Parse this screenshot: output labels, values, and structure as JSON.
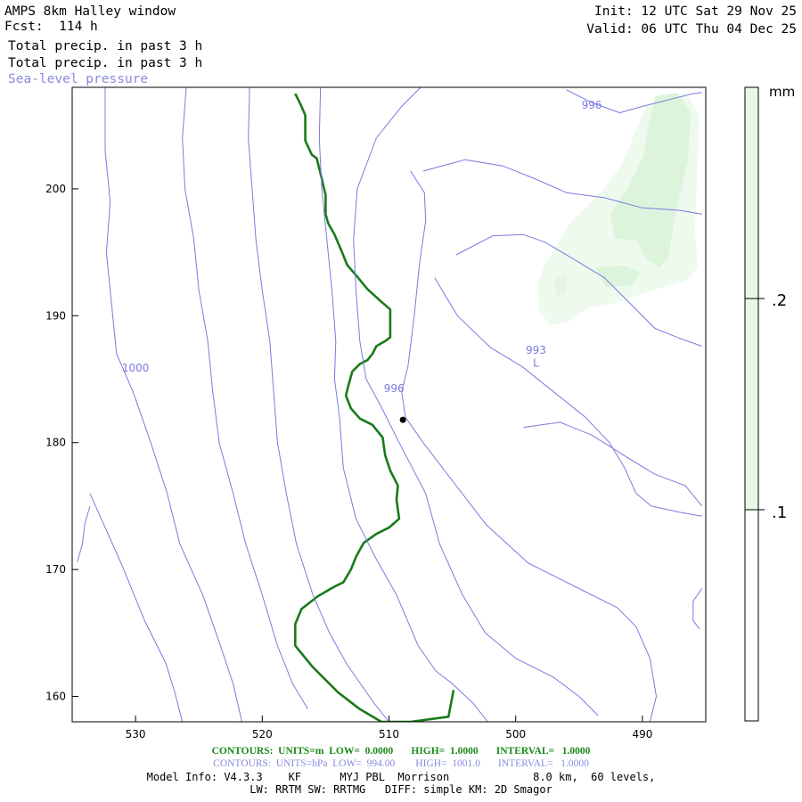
{
  "header": {
    "model": "AMPS 8km Halley window",
    "fcst": "Fcst:  114 h",
    "init": "Init: 12 UTC Sat 29 Nov 25",
    "valid": "Valid: 06 UTC Thu 04 Dec 25",
    "field1": "Total precip. in past 3 h",
    "field2": "Total precip. in past 3 h",
    "field3": "Sea-level pressure"
  },
  "footer": {
    "green_line": "CONTOURS:  UNITS=m  LOW=  0.0000       HIGH=  1.0000       INTERVAL=   1.0000",
    "blue_line": "CONTOURS:  UNITS=hPa  LOW=  994.00        HIGH=  1001.0       INTERVAL=   1.0000",
    "model_info": "Model Info: V4.3.3    KF      MYJ PBL  Morrison             8.0 km,  60 levels,",
    "physics": "LW: RRTM SW: RRTMG   DIFF: simple KM: 2D Smagor"
  },
  "colorbar": {
    "unit": "mm",
    "labels": [
      ".2",
      ".1"
    ],
    "levels": [
      0.1,
      0.2
    ],
    "colors": [
      "#ffffff",
      "#e8f8e8"
    ]
  },
  "chart_data": {
    "type": "line",
    "title": "",
    "xlabel": "",
    "ylabel": "",
    "xlim": [
      535,
      485
    ],
    "ylim": [
      208,
      158
    ],
    "x_ticks": [
      530,
      520,
      510,
      500,
      490
    ],
    "y_ticks": [
      160,
      170,
      180,
      190,
      200
    ],
    "grid": false,
    "contour_labels": [
      {
        "text": "1000",
        "x": 530.0,
        "y": 185.6
      },
      {
        "text": "996",
        "x": 509.6,
        "y": 184.0
      },
      {
        "text": "L",
        "x": 498.4,
        "y": 186.0
      },
      {
        "text": "993",
        "x": 498.4,
        "y": 187.0
      },
      {
        "text": "996",
        "x": 494.0,
        "y": 206.3
      }
    ],
    "point_marker": {
      "x": 508.9,
      "y": 181.8
    },
    "series": [
      {
        "color": "#1a7a1a",
        "points": [
          [
            504.9,
            160.5
          ],
          [
            505.3,
            158.4
          ],
          [
            508.3,
            158.0
          ],
          [
            510.6,
            158.0
          ],
          [
            512.3,
            159.0
          ],
          [
            514.0,
            160.3
          ],
          [
            516.0,
            162.3
          ],
          [
            517.4,
            164.0
          ],
          [
            517.4,
            165.7
          ],
          [
            516.9,
            166.9
          ],
          [
            515.6,
            167.9
          ],
          [
            514.4,
            168.6
          ],
          [
            513.6,
            169.0
          ],
          [
            513.0,
            170.0
          ],
          [
            512.6,
            171.0
          ],
          [
            512.0,
            172.1
          ],
          [
            511.0,
            172.8
          ],
          [
            510.0,
            173.3
          ],
          [
            509.2,
            174.0
          ],
          [
            509.4,
            175.5
          ],
          [
            509.3,
            176.6
          ],
          [
            509.9,
            177.8
          ],
          [
            510.3,
            179.0
          ],
          [
            510.5,
            180.4
          ],
          [
            511.3,
            181.4
          ],
          [
            512.3,
            181.9
          ],
          [
            513.0,
            182.7
          ],
          [
            513.4,
            183.7
          ],
          [
            513.2,
            184.5
          ],
          [
            512.9,
            185.6
          ],
          [
            512.3,
            186.2
          ],
          [
            511.7,
            186.5
          ],
          [
            511.3,
            187.0
          ],
          [
            511.0,
            187.6
          ],
          [
            510.3,
            188.0
          ],
          [
            509.9,
            188.3
          ],
          [
            509.9,
            189.7
          ],
          [
            509.9,
            190.5
          ],
          [
            510.6,
            191.1
          ],
          [
            511.7,
            192.1
          ],
          [
            512.6,
            193.2
          ],
          [
            513.3,
            194.0
          ],
          [
            513.7,
            195.0
          ],
          [
            514.3,
            196.4
          ],
          [
            514.8,
            197.3
          ],
          [
            515.0,
            198.0
          ],
          [
            515.0,
            199.5
          ],
          [
            515.4,
            201.2
          ],
          [
            515.7,
            202.4
          ],
          [
            516.1,
            202.7
          ],
          [
            516.6,
            203.8
          ],
          [
            516.6,
            205.8
          ],
          [
            517.0,
            206.7
          ],
          [
            517.4,
            207.5
          ]
        ]
      },
      {
        "color": "#7a7ae0",
        "points": [
          [
            533.6,
            176.0
          ],
          [
            531.1,
            170.4
          ],
          [
            529.3,
            166.0
          ],
          [
            527.6,
            162.6
          ],
          [
            526.9,
            160.3
          ],
          [
            526.3,
            158.0
          ]
        ]
      },
      {
        "color": "#7a7ae0",
        "points": [
          [
            532.4,
            208.0
          ],
          [
            532.4,
            203.0
          ],
          [
            532.0,
            199.0
          ],
          [
            532.3,
            195.0
          ],
          [
            531.9,
            191.0
          ],
          [
            531.5,
            187.0
          ],
          [
            530.2,
            184.0
          ],
          [
            528.8,
            180.0
          ],
          [
            527.5,
            176.0
          ],
          [
            526.5,
            172.0
          ],
          [
            524.7,
            168.0
          ],
          [
            523.3,
            164.0
          ],
          [
            522.3,
            161.0
          ],
          [
            521.6,
            158.0
          ]
        ]
      },
      {
        "color": "#7a7ae0",
        "points": [
          [
            526.0,
            208.0
          ],
          [
            526.3,
            204.0
          ],
          [
            526.1,
            200.0
          ],
          [
            525.4,
            196.0
          ],
          [
            525.0,
            192.0
          ],
          [
            524.3,
            188.0
          ],
          [
            523.9,
            184.0
          ],
          [
            523.4,
            180.0
          ],
          [
            522.3,
            176.0
          ],
          [
            521.3,
            172.0
          ],
          [
            520.0,
            168.0
          ],
          [
            518.8,
            164.0
          ],
          [
            517.6,
            161.0
          ],
          [
            516.4,
            159.0
          ]
        ]
      },
      {
        "color": "#7a7ae0",
        "points": [
          [
            521.0,
            208.0
          ],
          [
            521.1,
            204.0
          ],
          [
            520.8,
            200.0
          ],
          [
            520.5,
            196.0
          ],
          [
            520.0,
            192.0
          ],
          [
            519.4,
            188.0
          ],
          [
            519.1,
            184.0
          ],
          [
            518.8,
            180.0
          ],
          [
            518.1,
            176.0
          ],
          [
            517.3,
            172.0
          ],
          [
            516.0,
            168.0
          ],
          [
            514.7,
            165.0
          ],
          [
            513.3,
            162.5
          ],
          [
            511.2,
            159.5
          ],
          [
            510.0,
            158.0
          ]
        ]
      },
      {
        "color": "#7a7ae0",
        "points": [
          [
            515.4,
            208.0
          ],
          [
            515.5,
            204.0
          ],
          [
            515.3,
            200.0
          ],
          [
            514.9,
            196.0
          ],
          [
            514.5,
            192.0
          ],
          [
            514.2,
            188.0
          ],
          [
            514.3,
            185.0
          ],
          [
            513.9,
            182.0
          ],
          [
            513.6,
            178.0
          ],
          [
            512.6,
            174.0
          ],
          [
            511.1,
            171.0
          ],
          [
            509.4,
            168.0
          ],
          [
            507.7,
            164.0
          ],
          [
            506.3,
            162.0
          ],
          [
            505.0,
            161.0
          ],
          [
            503.4,
            159.5
          ],
          [
            502.2,
            158.0
          ]
        ]
      },
      {
        "color": "#7a7ae0",
        "points": [
          [
            507.5,
            208.0
          ],
          [
            509.0,
            206.5
          ],
          [
            511.0,
            204.0
          ],
          [
            512.5,
            200.0
          ],
          [
            512.8,
            196.0
          ],
          [
            512.6,
            192.0
          ],
          [
            512.3,
            188.0
          ],
          [
            511.8,
            185.0
          ],
          [
            510.7,
            183.0
          ],
          [
            509.2,
            180.0
          ],
          [
            507.1,
            176.0
          ],
          [
            506.0,
            172.0
          ],
          [
            504.2,
            168.0
          ],
          [
            502.4,
            165.0
          ],
          [
            500.0,
            163.0
          ],
          [
            497.0,
            161.5
          ],
          [
            495.0,
            160.0
          ],
          [
            493.5,
            158.5
          ]
        ]
      },
      {
        "color": "#7a7ae0",
        "points": [
          [
            508.3,
            201.4
          ],
          [
            507.2,
            199.7
          ],
          [
            507.1,
            197.5
          ],
          [
            507.6,
            194.0
          ],
          [
            508.0,
            190.0
          ],
          [
            508.5,
            186.0
          ],
          [
            509.0,
            184.0
          ],
          [
            508.7,
            182.0
          ],
          [
            507.3,
            180.0
          ],
          [
            505.0,
            177.0
          ],
          [
            502.3,
            173.5
          ],
          [
            499.0,
            170.5
          ],
          [
            495.0,
            168.5
          ],
          [
            492.0,
            167.0
          ],
          [
            490.5,
            165.5
          ],
          [
            489.4,
            163.0
          ],
          [
            488.9,
            160.0
          ],
          [
            489.4,
            158.0
          ]
        ]
      },
      {
        "color": "#7a7ae0",
        "points": [
          [
            506.4,
            193.0
          ],
          [
            504.6,
            190.0
          ],
          [
            502.0,
            187.5
          ],
          [
            499.5,
            186.0
          ],
          [
            497.0,
            184.0
          ],
          [
            494.5,
            182.0
          ],
          [
            492.6,
            180.0
          ],
          [
            491.4,
            178.0
          ],
          [
            490.5,
            176.0
          ],
          [
            489.3,
            175.0
          ],
          [
            487.0,
            174.5
          ],
          [
            485.3,
            174.2
          ]
        ]
      },
      {
        "color": "#7a7ae0",
        "points": [
          [
            504.7,
            194.8
          ],
          [
            501.8,
            196.3
          ],
          [
            499.4,
            196.4
          ],
          [
            497.7,
            195.8
          ],
          [
            495.5,
            194.5
          ],
          [
            493.0,
            193.0
          ],
          [
            491.0,
            191.0
          ],
          [
            489.0,
            189.0
          ],
          [
            487.0,
            188.2
          ],
          [
            485.3,
            187.6
          ]
        ]
      },
      {
        "color": "#7a7ae0",
        "points": [
          [
            507.3,
            201.4
          ],
          [
            504.0,
            202.3
          ],
          [
            501.0,
            201.8
          ],
          [
            498.5,
            200.8
          ],
          [
            496.0,
            199.7
          ],
          [
            493.0,
            199.3
          ],
          [
            490.0,
            198.5
          ],
          [
            487.0,
            198.3
          ],
          [
            485.3,
            198.0
          ]
        ]
      },
      {
        "color": "#7a7ae0",
        "points": [
          [
            499.4,
            181.2
          ],
          [
            496.5,
            181.6
          ],
          [
            494.0,
            180.6
          ],
          [
            491.3,
            178.9
          ],
          [
            489.0,
            177.5
          ],
          [
            486.6,
            176.6
          ],
          [
            485.3,
            175.0
          ]
        ]
      },
      {
        "color": "#7a7ae0",
        "points": [
          [
            496.0,
            207.8
          ],
          [
            494.0,
            206.8
          ],
          [
            491.8,
            206.0
          ],
          [
            490.0,
            206.5
          ],
          [
            488.0,
            207.0
          ],
          [
            486.0,
            207.5
          ],
          [
            485.3,
            207.6
          ]
        ]
      },
      {
        "color": "#7a7ae0",
        "points": [
          [
            533.6,
            175.0
          ],
          [
            534.0,
            173.6
          ],
          [
            534.2,
            172.0
          ],
          [
            534.6,
            170.6
          ]
        ]
      },
      {
        "color": "#7a7ae0",
        "points": [
          [
            485.3,
            168.5
          ],
          [
            486.0,
            167.5
          ],
          [
            486.0,
            166.0
          ],
          [
            485.5,
            165.3
          ]
        ]
      }
    ]
  }
}
